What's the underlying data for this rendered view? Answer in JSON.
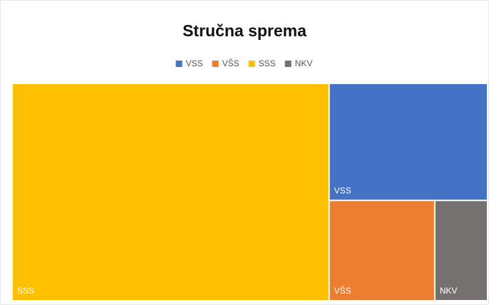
{
  "chart_data": {
    "type": "treemap",
    "title": "Stručna sprema",
    "categories": [
      "VSS",
      "VŠS",
      "SSS",
      "NKV"
    ],
    "values": [
      7,
      4,
      26,
      2
    ],
    "colors": [
      "#4472c4",
      "#ed7d31",
      "#ffc000",
      "#767171"
    ],
    "legend": "top"
  }
}
